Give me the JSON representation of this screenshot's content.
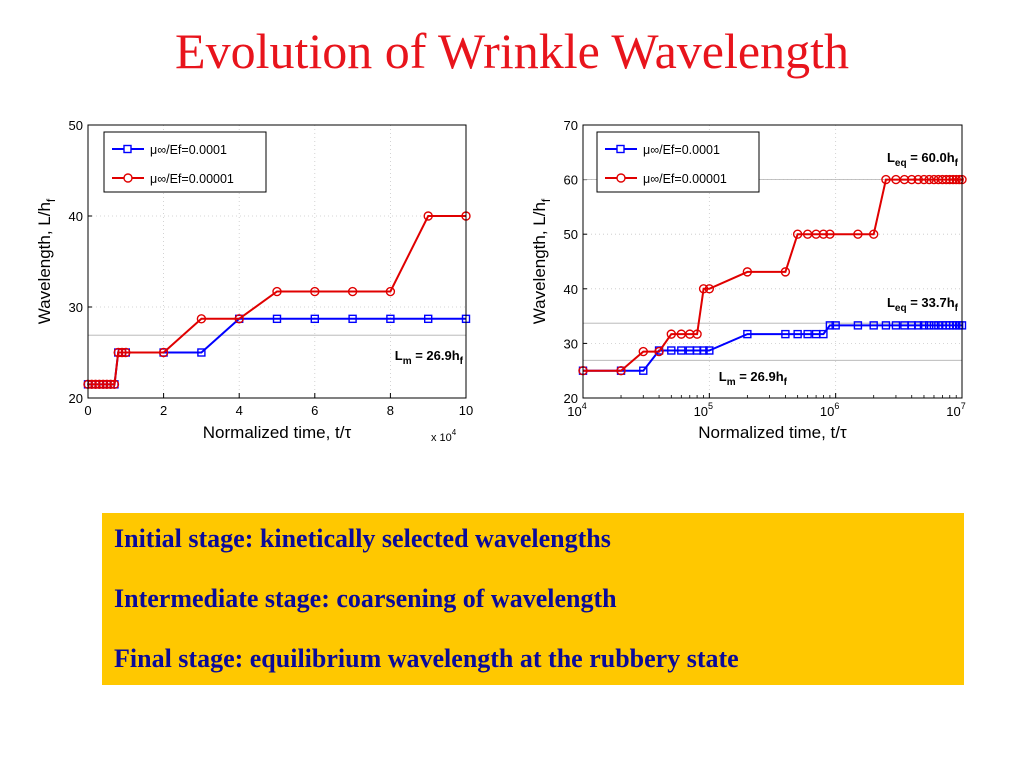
{
  "slide": {
    "title": "Evolution of Wrinkle Wavelength",
    "title_color": "#e8141c",
    "box_color": "#ffc800",
    "box_text_color": "#0b0b99",
    "stages": [
      "Initial stage: kinetically selected wavelengths",
      "Intermediate stage: coarsening of wavelength",
      "Final stage: equilibrium wavelength at the rubbery state"
    ]
  },
  "chart_data": [
    {
      "type": "line",
      "xscale": "linear",
      "xlabel": "Normalized time, t/τ",
      "ylabel": "Wavelength, L/h",
      "ylabel_sub": "f",
      "x_multiplier": "x 10",
      "x_multiplier_exp": "4",
      "xlim": [
        0,
        10
      ],
      "ylim": [
        20,
        50
      ],
      "xticks": [
        0,
        2,
        4,
        6,
        8,
        10
      ],
      "yticks": [
        20,
        30,
        40,
        50
      ],
      "grid": "dotted",
      "legend": "top-left",
      "series": [
        {
          "name": "μ∞/Ef=0.0001",
          "color": "#0000ff",
          "marker": "square",
          "x": [
            0.0,
            0.1,
            0.2,
            0.3,
            0.4,
            0.5,
            0.6,
            0.7,
            0.8,
            0.9,
            1,
            2,
            3,
            4,
            5,
            6,
            7,
            8,
            9,
            10
          ],
          "y": [
            21.5,
            21.5,
            21.5,
            21.5,
            21.5,
            21.5,
            21.5,
            21.5,
            25.0,
            25.0,
            25.0,
            25.0,
            25.0,
            28.7,
            28.7,
            28.7,
            28.7,
            28.7,
            28.7,
            28.7
          ]
        },
        {
          "name": "μ∞/Ef=0.00001",
          "color": "#e00000",
          "marker": "circle",
          "x": [
            0.0,
            0.1,
            0.2,
            0.3,
            0.4,
            0.5,
            0.6,
            0.7,
            0.8,
            0.9,
            1,
            2,
            3,
            4,
            5,
            6,
            7,
            8,
            9,
            10
          ],
          "y": [
            21.5,
            21.5,
            21.5,
            21.5,
            21.5,
            21.5,
            21.5,
            21.5,
            25.0,
            25.0,
            25.0,
            25.0,
            28.7,
            28.7,
            31.7,
            31.7,
            31.7,
            31.7,
            40.0,
            40.0
          ]
        }
      ],
      "annotations": [
        {
          "label": "L",
          "sub": "m",
          "text": " = 26.9h",
          "sub2": "f",
          "value": 26.9
        }
      ]
    },
    {
      "type": "line",
      "xscale": "log",
      "xlabel": "Normalized time, t/τ",
      "ylabel": "Wavelength, L/h",
      "ylabel_sub": "f",
      "xlim": [
        10000,
        10000000
      ],
      "ylim": [
        20,
        70
      ],
      "xtick_base": "10",
      "xtick_exps": [
        "4",
        "5",
        "6",
        "7"
      ],
      "yticks": [
        20,
        30,
        40,
        50,
        60,
        70
      ],
      "grid": "dotted",
      "legend": "top-left",
      "series": [
        {
          "name": "μ∞/Ef=0.0001",
          "color": "#0000ff",
          "marker": "square",
          "x": [
            10000,
            20000,
            30000,
            40000,
            50000,
            60000,
            70000,
            80000,
            90000,
            100000,
            200000,
            400000,
            500000,
            600000,
            700000,
            800000,
            900000,
            1000000,
            1500000,
            2000000,
            2500000,
            3000000,
            3500000,
            4000000,
            4500000,
            5000000,
            5500000,
            6000000,
            6500000,
            7000000,
            7500000,
            8000000,
            8500000,
            9000000,
            9500000,
            10000000
          ],
          "y": [
            25.0,
            25.0,
            25.0,
            28.7,
            28.7,
            28.7,
            28.7,
            28.7,
            28.7,
            28.7,
            31.7,
            31.7,
            31.7,
            31.7,
            31.7,
            31.7,
            33.3,
            33.3,
            33.3,
            33.3,
            33.3,
            33.3,
            33.3,
            33.3,
            33.3,
            33.3,
            33.3,
            33.3,
            33.3,
            33.3,
            33.3,
            33.3,
            33.3,
            33.3,
            33.3,
            33.3
          ]
        },
        {
          "name": "μ∞/Ef=0.00001",
          "color": "#e00000",
          "marker": "circle",
          "x": [
            10000,
            20000,
            30000,
            40000,
            50000,
            60000,
            70000,
            80000,
            90000,
            100000,
            200000,
            400000,
            500000,
            600000,
            700000,
            800000,
            900000,
            1500000,
            2000000,
            2500000,
            3000000,
            3500000,
            4000000,
            4500000,
            5000000,
            5500000,
            6000000,
            6500000,
            7000000,
            7500000,
            8000000,
            8500000,
            9000000,
            9500000,
            10000000
          ],
          "y": [
            25.0,
            25.0,
            28.5,
            28.5,
            31.7,
            31.7,
            31.7,
            31.7,
            40.0,
            40.0,
            43.1,
            43.1,
            50.0,
            50.0,
            50.0,
            50.0,
            50.0,
            50.0,
            50.0,
            60.0,
            60.0,
            60.0,
            60.0,
            60.0,
            60.0,
            60.0,
            60.0,
            60.0,
            60.0,
            60.0,
            60.0,
            60.0,
            60.0,
            60.0,
            60.0
          ]
        }
      ],
      "annotations": [
        {
          "label": "L",
          "sub": "eq",
          "text": " = 60.0h",
          "sub2": "f",
          "value": 60.0
        },
        {
          "label": "L",
          "sub": "eq",
          "text": " = 33.7h",
          "sub2": "f",
          "value": 33.7
        },
        {
          "label": "L",
          "sub": "m",
          "text": " = 26.9h",
          "sub2": "f",
          "value": 26.9
        }
      ]
    }
  ]
}
